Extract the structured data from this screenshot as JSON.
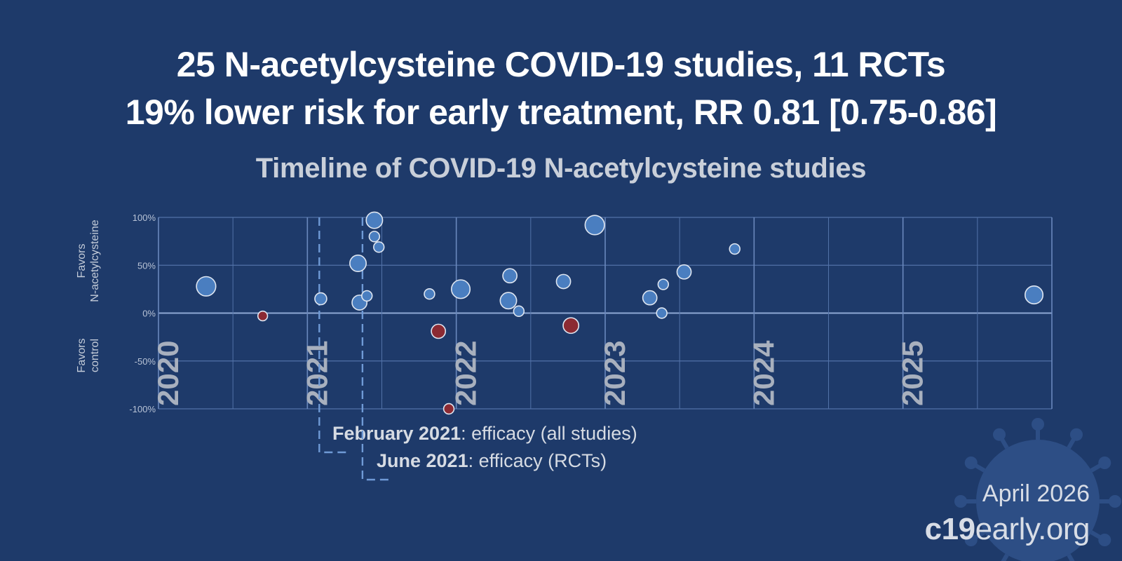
{
  "title_line1": "25 N-acetylcysteine COVID-19 studies, 11 RCTs",
  "title_line2": "19% lower risk for early treatment, RR 0.81 [0.75-0.86]",
  "footer": {
    "date": "April 2026",
    "brand_bold": "c19",
    "brand_rest": "early.org"
  },
  "colors": {
    "background": "#1e3a6a",
    "positive": "#4a7ec0",
    "negative": "#8b2a33",
    "grid": "#5272a8",
    "marker_line": "#6f9ad6"
  },
  "chart_data": {
    "type": "scatter",
    "title": "Timeline of COVID-19 N-acetylcysteine studies",
    "ylabel_top": [
      "Favors",
      "N-acetylcysteine"
    ],
    "ylabel_bottom": [
      "Favors",
      "control"
    ],
    "y_ticks": [
      "100%",
      "50%",
      "0%",
      "-50%",
      "-100%"
    ],
    "y_tick_values": [
      100,
      50,
      0,
      -50,
      -100
    ],
    "ylim": [
      -100,
      100
    ],
    "xlim": [
      2020.0,
      2026.0
    ],
    "year_labels": [
      "2020",
      "2021",
      "2022",
      "2023",
      "2024",
      "2025"
    ],
    "markers": [
      {
        "x": 2021.08,
        "bold": "February 2021",
        "text": ": efficacy (all studies)"
      },
      {
        "x": 2021.37,
        "bold": "June 2021",
        "text": ": efficacy (RCTs)"
      }
    ],
    "points": [
      {
        "x": 2020.32,
        "y": 28,
        "size": 2.6
      },
      {
        "x": 2020.7,
        "y": -3,
        "size": 1.3
      },
      {
        "x": 2021.09,
        "y": 15,
        "size": 1.6
      },
      {
        "x": 2021.34,
        "y": 52,
        "size": 2.2
      },
      {
        "x": 2021.35,
        "y": 11,
        "size": 2.0
      },
      {
        "x": 2021.4,
        "y": 18,
        "size": 1.4
      },
      {
        "x": 2021.45,
        "y": 97,
        "size": 2.2
      },
      {
        "x": 2021.45,
        "y": 80,
        "size": 1.4
      },
      {
        "x": 2021.48,
        "y": 69,
        "size": 1.4
      },
      {
        "x": 2021.82,
        "y": 20,
        "size": 1.4
      },
      {
        "x": 2021.88,
        "y": -19,
        "size": 1.9
      },
      {
        "x": 2021.95,
        "y": -100,
        "size": 1.4
      },
      {
        "x": 2022.03,
        "y": 25,
        "size": 2.5
      },
      {
        "x": 2022.36,
        "y": 39,
        "size": 1.9
      },
      {
        "x": 2022.35,
        "y": 13,
        "size": 2.2
      },
      {
        "x": 2022.42,
        "y": 2,
        "size": 1.4
      },
      {
        "x": 2022.72,
        "y": 33,
        "size": 1.9
      },
      {
        "x": 2022.77,
        "y": -13,
        "size": 2.1
      },
      {
        "x": 2022.93,
        "y": 92,
        "size": 2.6
      },
      {
        "x": 2023.3,
        "y": 16,
        "size": 1.9
      },
      {
        "x": 2023.39,
        "y": 30,
        "size": 1.4
      },
      {
        "x": 2023.38,
        "y": 0,
        "size": 1.4
      },
      {
        "x": 2023.53,
        "y": 43,
        "size": 1.9
      },
      {
        "x": 2023.87,
        "y": 67,
        "size": 1.4
      },
      {
        "x": 2025.88,
        "y": 19,
        "size": 2.4
      }
    ]
  }
}
